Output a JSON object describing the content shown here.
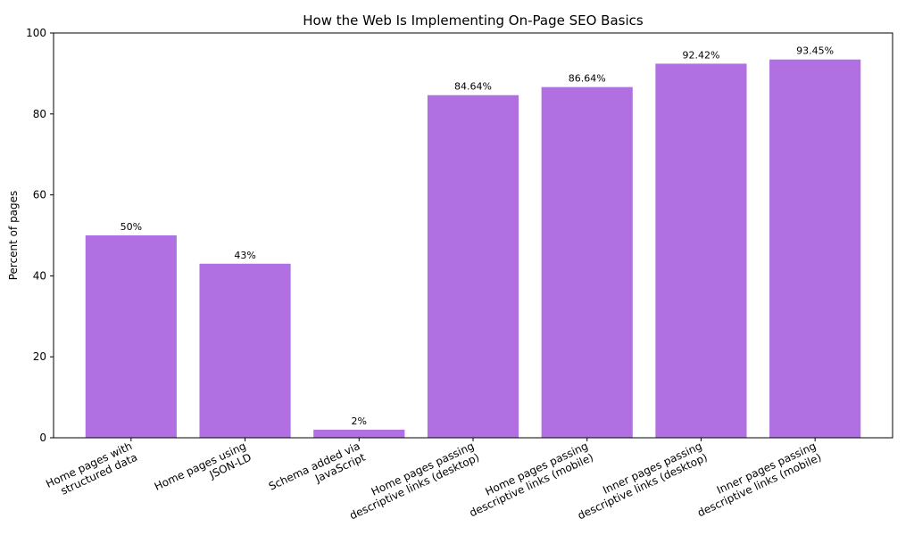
{
  "chart_data": {
    "type": "bar",
    "title": "How the Web Is Implementing On-Page SEO Basics",
    "xlabel": "",
    "ylabel": "Percent of pages",
    "ylim": [
      0,
      100
    ],
    "yticks": [
      0,
      20,
      40,
      60,
      80,
      100
    ],
    "grid": false,
    "bar_color": "#b070e2",
    "categories": [
      "Home pages with\nstructured data",
      "Home pages using\nJSON-LD",
      "Schema added via\nJavaScript",
      "Home pages passing\ndescriptive links (desktop)",
      "Home pages passing\ndescriptive links (mobile)",
      "Inner pages passing\ndescriptive links (desktop)",
      "Inner pages passing\ndescriptive links (mobile)"
    ],
    "values": [
      50,
      43,
      2,
      84.64,
      86.64,
      92.42,
      93.45
    ],
    "data_labels": [
      "50%",
      "43%",
      "2%",
      "84.64%",
      "86.64%",
      "92.42%",
      "93.45%"
    ]
  }
}
